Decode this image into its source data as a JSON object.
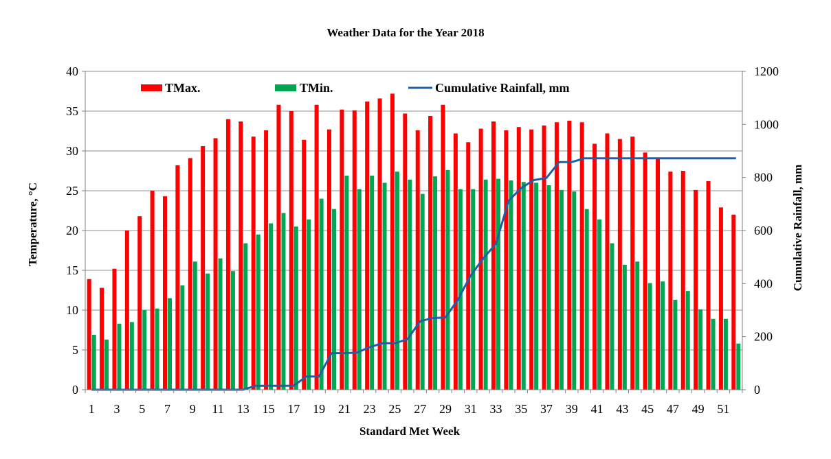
{
  "chart_data": {
    "type": "bar",
    "title": "Weather Data for the Year 2018",
    "xlabel": "Standard Met Week",
    "ylabel": "Temperature, °C",
    "y2label": "Cumulative Rainfall, mm",
    "ylim": [
      0,
      40
    ],
    "y2lim": [
      0,
      1200
    ],
    "yticks": [
      0,
      5,
      10,
      15,
      20,
      25,
      30,
      35,
      40
    ],
    "y2ticks": [
      0,
      200,
      400,
      600,
      800,
      1000,
      1200
    ],
    "xtick_labels": [
      "1",
      "3",
      "5",
      "7",
      "9",
      "11",
      "13",
      "15",
      "17",
      "19",
      "21",
      "23",
      "25",
      "27",
      "29",
      "31",
      "33",
      "35",
      "37",
      "39",
      "41",
      "43",
      "45",
      "47",
      "49",
      "51"
    ],
    "grid": true,
    "legend_position": "top-left",
    "categories": [
      1,
      2,
      3,
      4,
      5,
      6,
      7,
      8,
      9,
      10,
      11,
      12,
      13,
      14,
      15,
      16,
      17,
      18,
      19,
      20,
      21,
      22,
      23,
      24,
      25,
      26,
      27,
      28,
      29,
      30,
      31,
      32,
      33,
      34,
      35,
      36,
      37,
      38,
      39,
      40,
      41,
      42,
      43,
      44,
      45,
      46,
      47,
      48,
      49,
      50,
      51,
      52
    ],
    "series": [
      {
        "name": "TMax.",
        "kind": "bar",
        "axis": "left",
        "color": "#ff0000",
        "values": [
          13.9,
          12.8,
          15.2,
          20.0,
          21.8,
          25.0,
          24.3,
          28.2,
          29.1,
          30.6,
          31.6,
          34.0,
          33.7,
          31.8,
          32.6,
          35.8,
          35.0,
          31.4,
          35.8,
          32.7,
          35.2,
          35.1,
          36.2,
          36.6,
          37.2,
          34.7,
          32.6,
          34.4,
          35.8,
          32.2,
          31.1,
          32.8,
          33.7,
          32.6,
          33.0,
          32.7,
          33.2,
          33.6,
          33.8,
          33.6,
          30.9,
          32.2,
          31.5,
          31.8,
          29.8,
          29.0,
          27.4,
          27.5,
          25.1,
          26.2,
          22.9,
          22.0
        ]
      },
      {
        "name": "TMin.",
        "kind": "bar",
        "axis": "left",
        "color": "#00a651",
        "values": [
          6.9,
          6.3,
          8.3,
          8.5,
          10.0,
          10.2,
          11.5,
          13.1,
          16.1,
          14.6,
          16.5,
          14.9,
          18.4,
          19.5,
          20.9,
          22.2,
          20.5,
          21.4,
          24.0,
          22.7,
          26.9,
          25.2,
          26.9,
          26.0,
          27.4,
          26.4,
          24.6,
          26.8,
          27.6,
          25.2,
          25.2,
          26.4,
          26.5,
          26.3,
          26.1,
          26.0,
          25.7,
          25.1,
          24.9,
          22.7,
          21.4,
          18.4,
          15.7,
          16.1,
          13.4,
          13.6,
          11.3,
          12.4,
          10.1,
          8.9,
          8.9,
          5.8
        ]
      },
      {
        "name": "Cumulative Rainfall, mm",
        "kind": "line",
        "axis": "right",
        "color": "#1f5fa8",
        "values": [
          0,
          0,
          0,
          0,
          0,
          0,
          0,
          0,
          0,
          0,
          0,
          0,
          0,
          15,
          15,
          15,
          15,
          50,
          50,
          138,
          138,
          140,
          160,
          175,
          175,
          190,
          258,
          270,
          272,
          340,
          430,
          495,
          550,
          712,
          760,
          790,
          798,
          858,
          858,
          872,
          872,
          872,
          872,
          872,
          872,
          872,
          872,
          872,
          872,
          872,
          872,
          872
        ]
      }
    ]
  }
}
